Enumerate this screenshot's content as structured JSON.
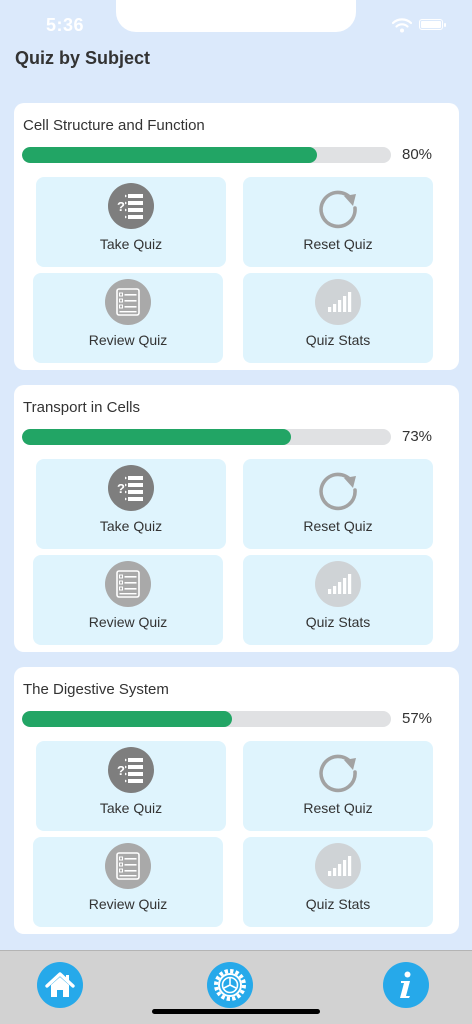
{
  "status_bar": {
    "time": "5:36"
  },
  "header": {
    "title": "Quiz by Subject"
  },
  "colors": {
    "background": "#dbe9fb",
    "progress": "#22a565",
    "tile": "#dff4fd",
    "tab_accent": "#26a9ea"
  },
  "actions": {
    "take_quiz": {
      "label": "Take Quiz",
      "icon": "quiz-checklist-icon"
    },
    "reset_quiz": {
      "label": "Reset Quiz",
      "icon": "reset-arrow-icon"
    },
    "review_quiz": {
      "label": "Review Quiz",
      "icon": "review-list-icon"
    },
    "quiz_stats": {
      "label": "Quiz Stats",
      "icon": "signal-bars-icon"
    }
  },
  "subjects": [
    {
      "title": "Cell Structure and Function",
      "progress_percent": 80,
      "progress_label": "80%"
    },
    {
      "title": "Transport in Cells",
      "progress_percent": 73,
      "progress_label": "73%"
    },
    {
      "title": "The Digestive System",
      "progress_percent": 57,
      "progress_label": "57%"
    }
  ],
  "tab_bar": {
    "items": [
      {
        "name": "home",
        "icon": "home-icon"
      },
      {
        "name": "settings",
        "icon": "gear-icon"
      },
      {
        "name": "info",
        "icon": "info-icon"
      }
    ]
  }
}
